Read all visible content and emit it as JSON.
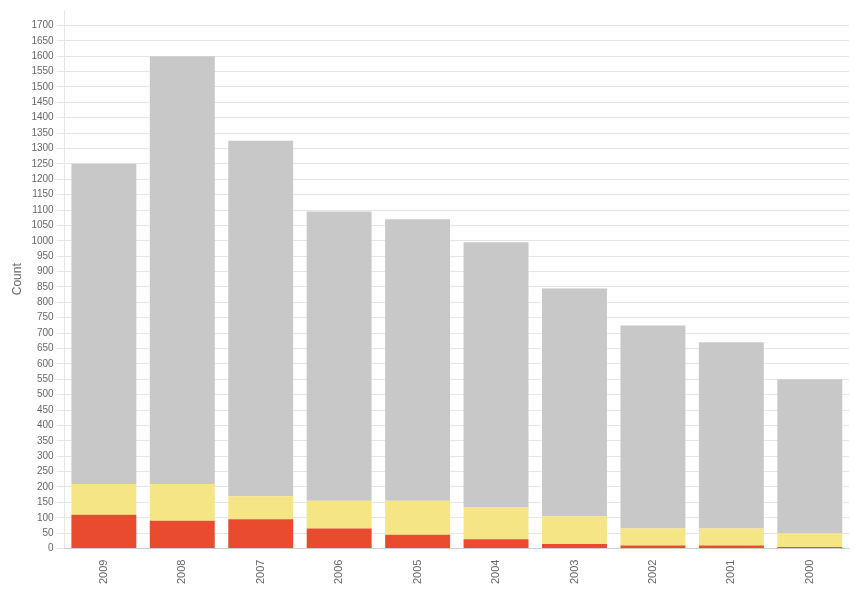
{
  "chart_data": {
    "type": "bar",
    "stacked": true,
    "categories": [
      "2009",
      "2008",
      "2007",
      "2006",
      "2005",
      "2004",
      "2003",
      "2002",
      "2001",
      "2000"
    ],
    "series": [
      {
        "color": "#e84b2e",
        "values": [
          110,
          90,
          95,
          65,
          45,
          30,
          15,
          10,
          10,
          5
        ]
      },
      {
        "color": "#f5e584",
        "values": [
          100,
          120,
          75,
          90,
          110,
          105,
          90,
          55,
          55,
          45
        ]
      },
      {
        "color": "#c8c8c8",
        "values": [
          1040,
          1390,
          1155,
          940,
          915,
          860,
          740,
          660,
          605,
          500
        ]
      }
    ],
    "ylabel": "Count",
    "ylim": [
      0,
      1750
    ],
    "yticks": [
      0,
      50,
      100,
      150,
      200,
      250,
      300,
      350,
      400,
      450,
      500,
      550,
      600,
      650,
      700,
      750,
      800,
      850,
      900,
      950,
      1000,
      1050,
      1100,
      1150,
      1200,
      1250,
      1300,
      1350,
      1400,
      1450,
      1500,
      1550,
      1600,
      1650,
      1700
    ],
    "grid": true
  }
}
